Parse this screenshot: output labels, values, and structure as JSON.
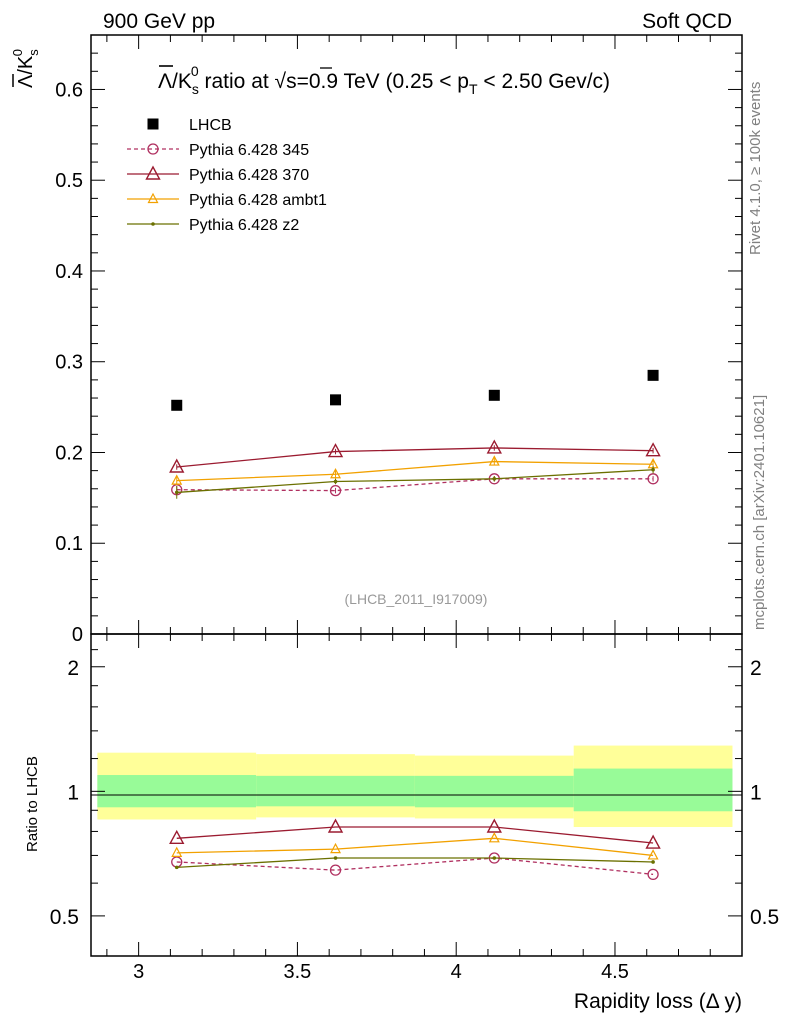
{
  "header": {
    "left": "900 GeV pp",
    "right": "Soft QCD"
  },
  "side_labels": {
    "top": "Rivet 4.1.0, ≥ 100k events",
    "bottom": "mcplots.cern.ch [arXiv:2401.10621]"
  },
  "watermark": "(LHCB_2011_I917009)",
  "colors": {
    "data": "#000000",
    "p345": "#b03060",
    "p370": "#9b1b30",
    "ambt1": "#f2a100",
    "z2": "#6b7000",
    "band_inner": "#98fb98",
    "band_outer": "#ffff99"
  },
  "chart_data": [
    {
      "type": "scatter",
      "panel": "main",
      "title_parts": {
        "lead": "/K",
        "lambda_bar": "Λ",
        "sub_s": "s",
        "sup_0": "0",
        "mid": " ratio at ",
        "sqrt": "√",
        "s_energy": "s=0.9 TeV (0.25 < p",
        "sub_T": "T",
        "tail": " < 2.50 Gev/c)"
      },
      "ylabel_parts": {
        "lambda_bar": "Λ",
        "slash_k": "/K",
        "sub_s": "s",
        "sup_0": "0"
      },
      "ylim": [
        0,
        0.66
      ],
      "xlim": [
        2.85,
        4.9
      ],
      "yticks": [
        "0",
        "0.1",
        "0.2",
        "0.3",
        "0.4",
        "0.5",
        "0.6"
      ],
      "ytick_values": [
        0,
        0.1,
        0.2,
        0.3,
        0.4,
        0.5,
        0.6
      ],
      "legend_placement": "top-left",
      "x": [
        3.12,
        3.62,
        4.12,
        4.62
      ],
      "series": [
        {
          "name": "LHCB",
          "key": "data",
          "marker": "square",
          "values": [
            0.252,
            0.258,
            0.263,
            0.285
          ],
          "errors": [
            0.003,
            0.003,
            0.003,
            0.004
          ]
        },
        {
          "name": "Pythia 6.428 345",
          "key": "p345",
          "marker": "circle",
          "dashed": true,
          "values": [
            0.159,
            0.158,
            0.171,
            0.171
          ],
          "errors": [
            0.004,
            0.003,
            0.003,
            0.003
          ]
        },
        {
          "name": "Pythia 6.428 370",
          "key": "p370",
          "marker": "triangle",
          "values": [
            0.184,
            0.201,
            0.205,
            0.202
          ],
          "errors": [
            0.003,
            0.003,
            0.003,
            0.003
          ]
        },
        {
          "name": "Pythia 6.428 ambt1",
          "key": "ambt1",
          "marker": "triangle-small",
          "values": [
            0.169,
            0.176,
            0.19,
            0.187
          ],
          "errors": [
            0.005,
            0.005,
            0.004,
            0.005
          ]
        },
        {
          "name": "Pythia 6.428 z2",
          "key": "z2",
          "marker": "dot",
          "values": [
            0.156,
            0.168,
            0.171,
            0.181
          ],
          "errors": [
            0.007,
            0.003,
            0.003,
            0.004
          ]
        }
      ]
    },
    {
      "type": "scatter",
      "panel": "ratio",
      "ylabel": "Ratio to LHCB",
      "log_y": true,
      "ylim": [
        0.4,
        2.4
      ],
      "xlim": [
        2.85,
        4.9
      ],
      "yticks": [
        "0.5",
        "1",
        "2"
      ],
      "ytick_values": [
        0.5,
        1,
        2
      ],
      "xlabel": "Rapidity loss (Δ y)",
      "xticks": [
        "3",
        "3.5",
        "4",
        "4.5"
      ],
      "xtick_values": [
        3,
        3.5,
        4,
        4.5
      ],
      "bands": [
        {
          "x0": 2.87,
          "x1": 3.37,
          "inner": [
            0.915,
            1.095
          ],
          "outer": [
            0.855,
            1.24
          ]
        },
        {
          "x0": 3.37,
          "x1": 3.87,
          "inner": [
            0.92,
            1.09
          ],
          "outer": [
            0.865,
            1.23
          ]
        },
        {
          "x0": 3.87,
          "x1": 4.37,
          "inner": [
            0.915,
            1.09
          ],
          "outer": [
            0.86,
            1.22
          ]
        },
        {
          "x0": 4.37,
          "x1": 4.87,
          "inner": [
            0.895,
            1.135
          ],
          "outer": [
            0.82,
            1.29
          ]
        }
      ],
      "x": [
        3.12,
        3.62,
        4.12,
        4.62
      ],
      "series": [
        {
          "name": "Pythia 6.428 345",
          "key": "p345",
          "marker": "circle",
          "dashed": true,
          "values": [
            0.675,
            0.645,
            0.69,
            0.63
          ]
        },
        {
          "name": "Pythia 6.428 370",
          "key": "p370",
          "marker": "triangle",
          "values": [
            0.77,
            0.82,
            0.82,
            0.75
          ]
        },
        {
          "name": "Pythia 6.428 ambt1",
          "key": "ambt1",
          "marker": "triangle-small",
          "values": [
            0.71,
            0.725,
            0.77,
            0.7
          ]
        },
        {
          "name": "Pythia 6.428 z2",
          "key": "z2",
          "marker": "dot",
          "values": [
            0.655,
            0.69,
            0.69,
            0.675
          ]
        }
      ]
    }
  ]
}
